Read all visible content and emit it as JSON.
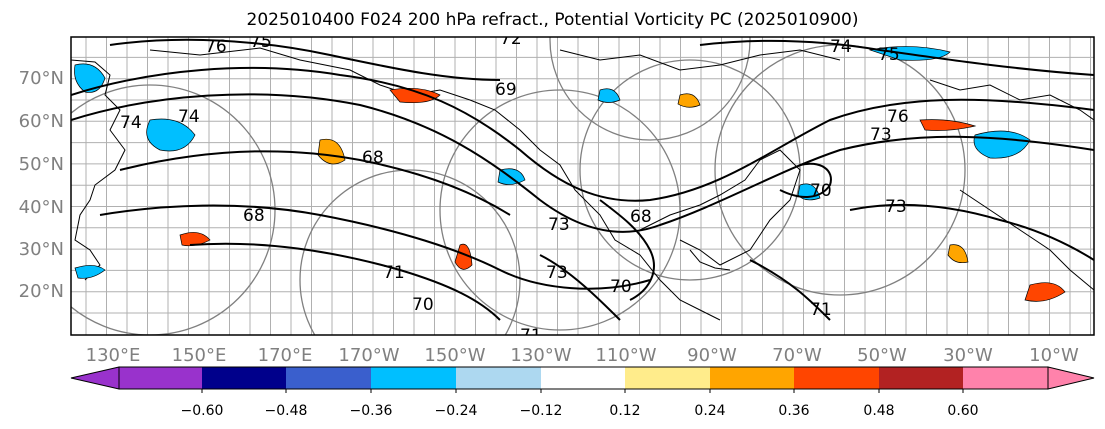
{
  "title": "2025010400 F024 200 hPa refract., Potential Vorticity PC (2025010900)",
  "map": {
    "lat_labels": [
      "20°N",
      "30°N",
      "40°N",
      "50°N",
      "60°N",
      "70°N"
    ],
    "lon_labels": [
      "130°E",
      "150°E",
      "170°E",
      "170°W",
      "150°W",
      "130°W",
      "110°W",
      "90°W",
      "70°W",
      "50°W",
      "30°W",
      "10°W"
    ],
    "contour_labels": [
      "76",
      "75",
      "72",
      "69",
      "74",
      "75",
      "76",
      "73",
      "74",
      "74",
      "68",
      "70",
      "68",
      "73",
      "71",
      "70",
      "73",
      "71",
      "70",
      "71",
      "68",
      "73"
    ]
  },
  "colorbar": {
    "colors": [
      "#9932cc",
      "#00008b",
      "#3a5fcd",
      "#00bfff",
      "#add8f0",
      "#ffffff",
      "#ffec8b",
      "#ffa500",
      "#ff4500",
      "#b22222",
      "#ff82ab"
    ],
    "under_color": "#9932cc",
    "over_color": "#ff82ab",
    "tick_labels": [
      "−0.60",
      "−0.48",
      "−0.36",
      "−0.24",
      "−0.12",
      "0.12",
      "0.24",
      "0.36",
      "0.48",
      "0.60"
    ]
  }
}
